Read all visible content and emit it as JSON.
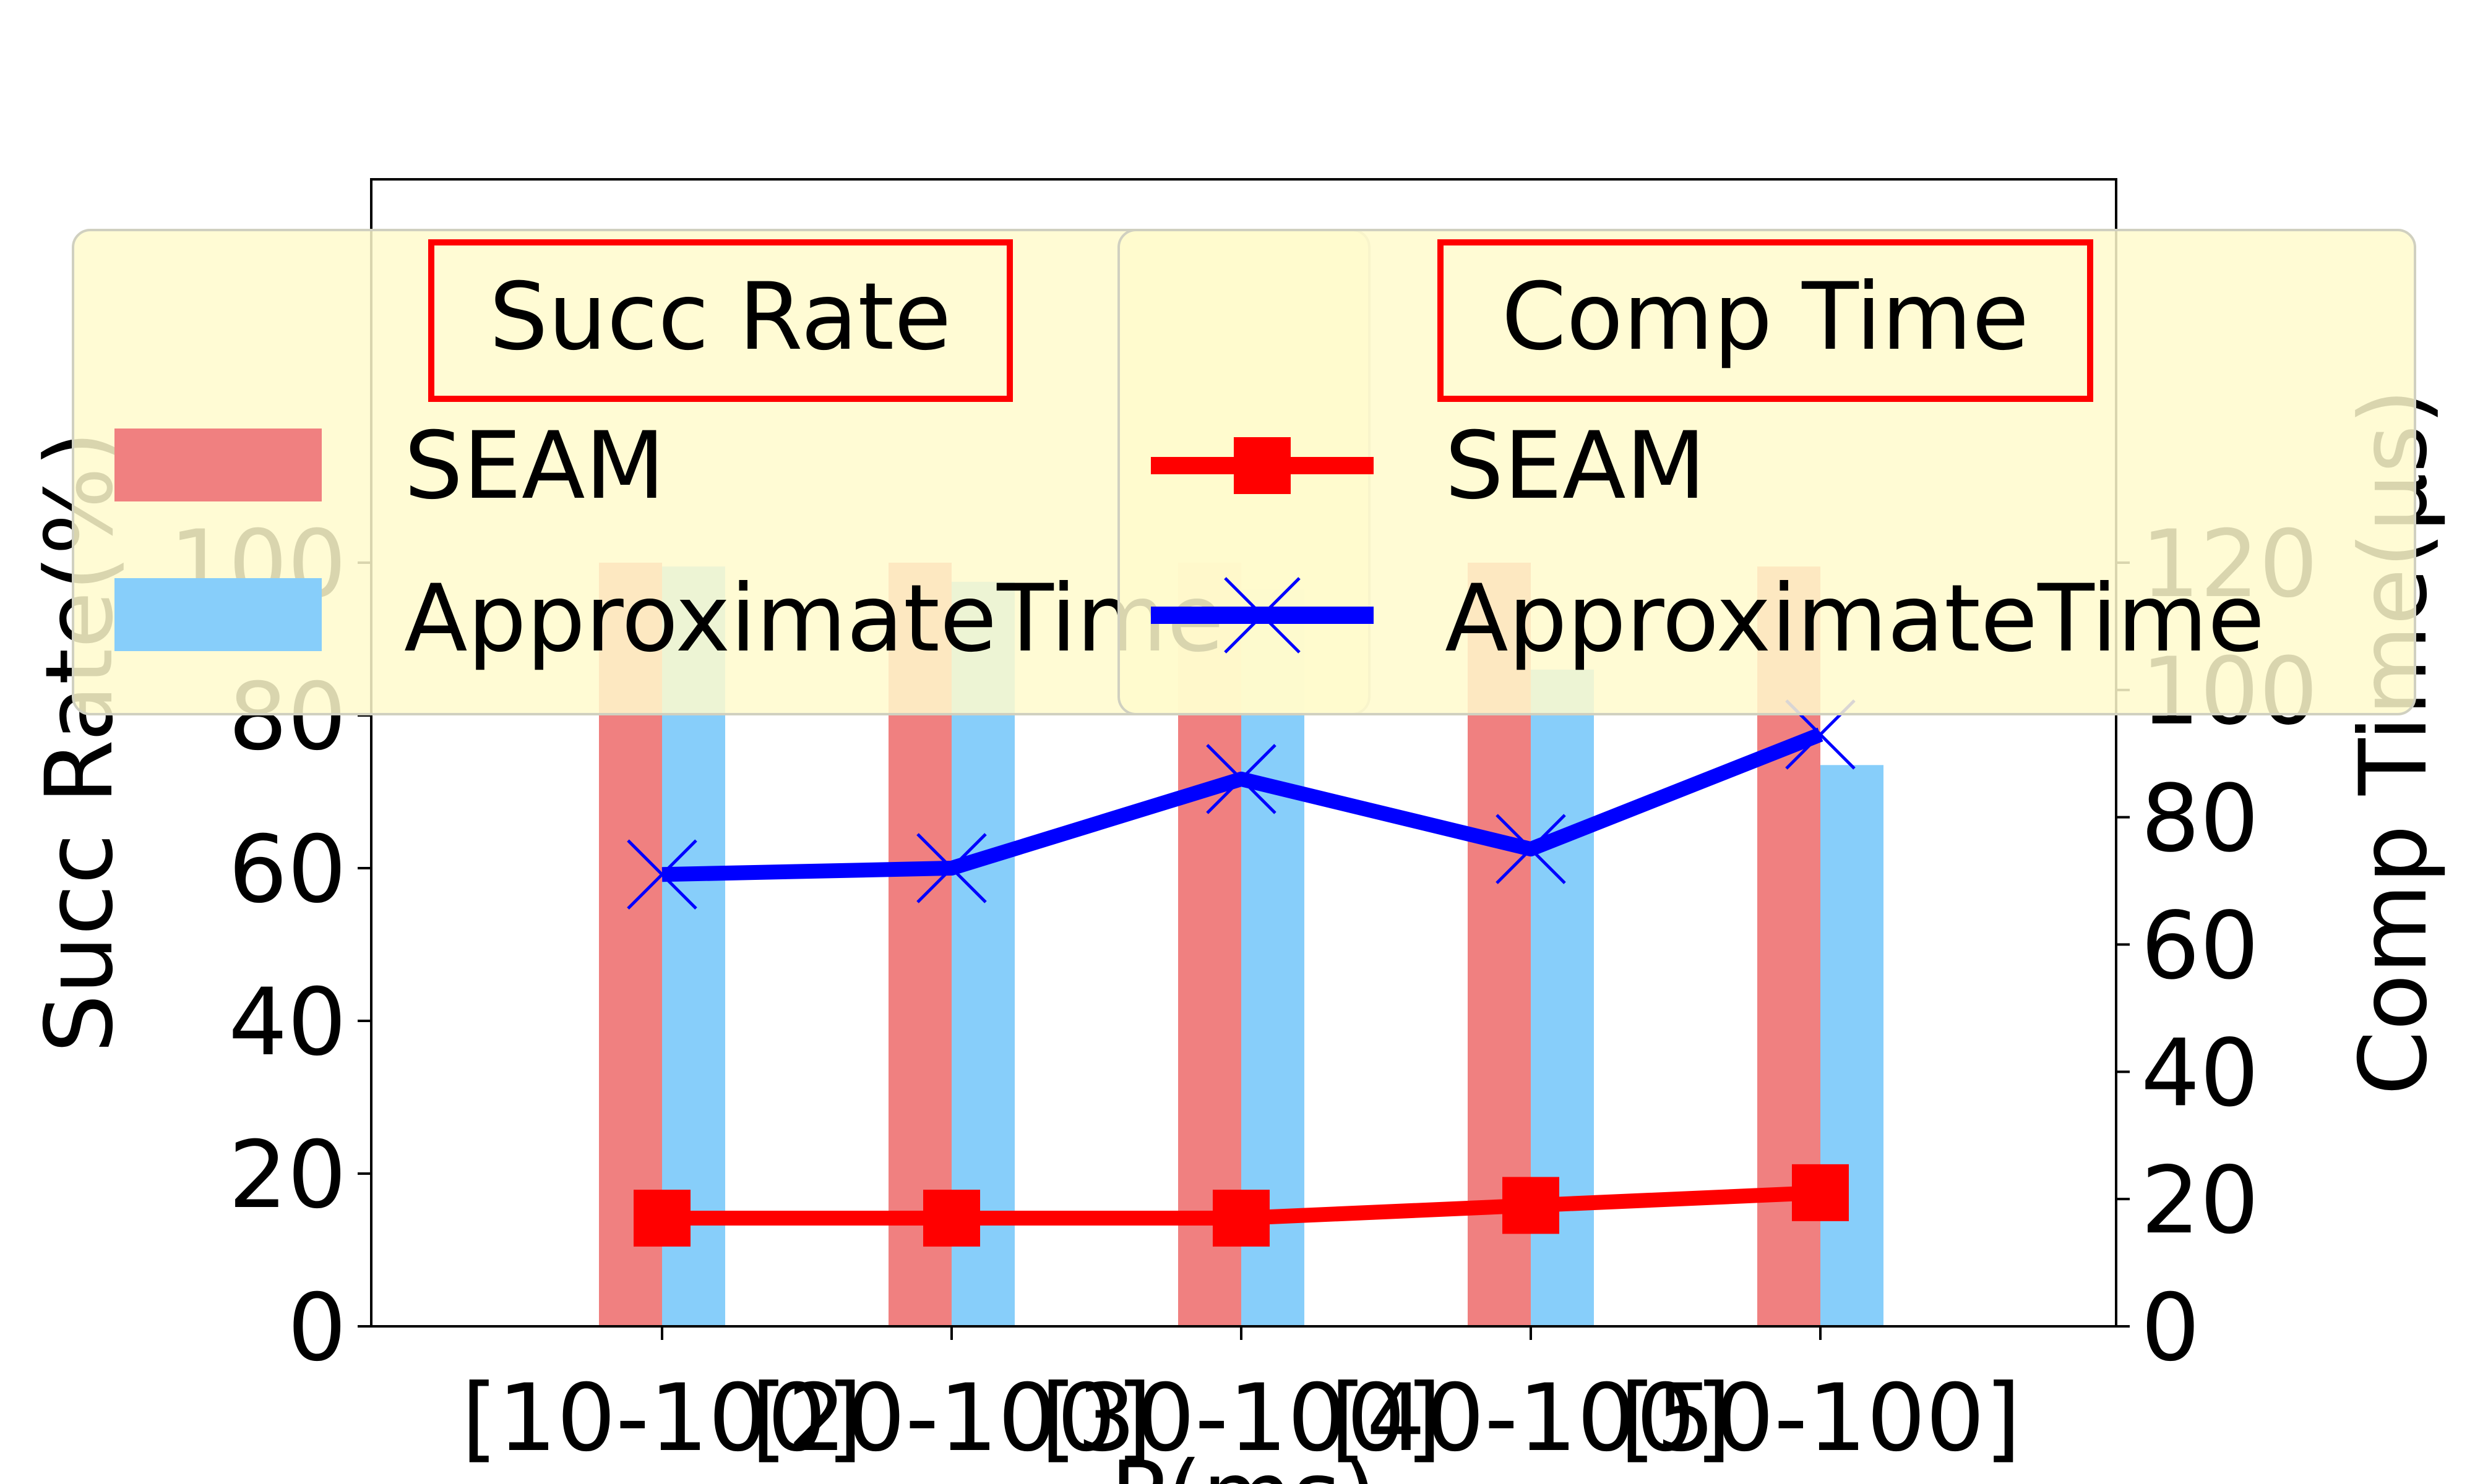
{
  "chart_data": {
    "type": "bar",
    "categories": [
      "[10-100]",
      "[20-100]",
      "[30-100]",
      "[40-100]",
      "[50-100]"
    ],
    "xlabel": "P(ms)",
    "ylabel_left": "Succ Rate(%)",
    "ylabel_right": "Comp Time(μs)",
    "ylim_left": [
      0,
      100
    ],
    "yticks_left": [
      "0",
      "20",
      "40",
      "60",
      "80",
      "100"
    ],
    "ylim_right": [
      0,
      125
    ],
    "yticks_right": [
      "0",
      "20",
      "40",
      "60",
      "80",
      "100",
      "120"
    ],
    "bar_series": [
      {
        "name": "SEAM",
        "color": "#f08080",
        "values": [
          100,
          100,
          100,
          100,
          99.5
        ]
      },
      {
        "name": "ApproximateTime",
        "color": "#87cefa",
        "values": [
          99.5,
          97.5,
          96.5,
          86,
          73.5
        ]
      }
    ],
    "line_series": [
      {
        "name": "SEAM",
        "color": "#ff0000",
        "marker": "square",
        "values": [
          17,
          17,
          17,
          19,
          21
        ]
      },
      {
        "name": "ApproximateTime",
        "color": "#0000ff",
        "marker": "x",
        "values": [
          71,
          72,
          86,
          75,
          93
        ]
      }
    ],
    "legend": {
      "left_title": "Succ Rate",
      "right_title": "Comp Time",
      "placement": "top",
      "background": "#fffacd"
    },
    "grid": false
  }
}
